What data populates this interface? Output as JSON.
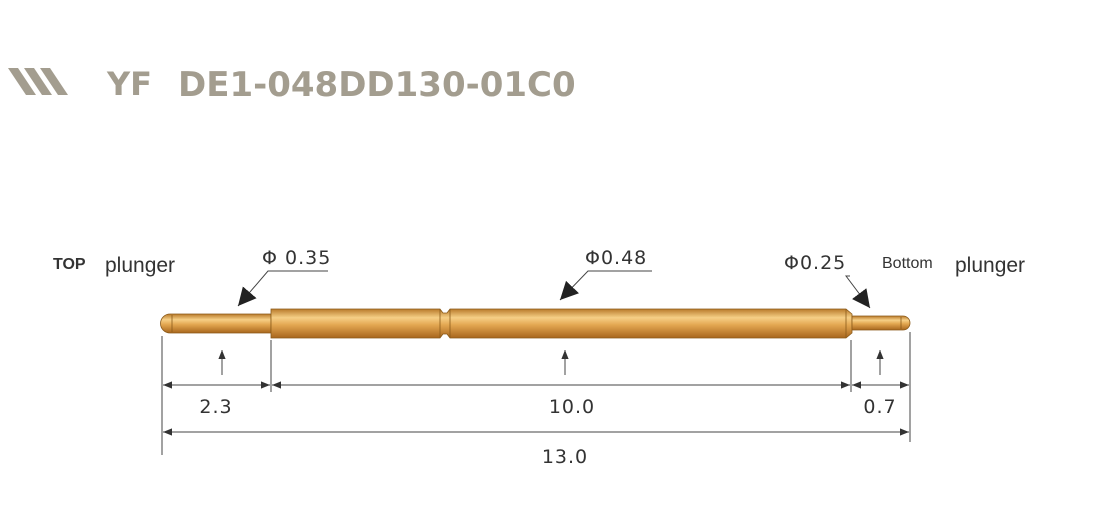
{
  "header": {
    "brand": "YF",
    "part_number": "DE1-048DD130-01C0"
  },
  "labels": {
    "top_prefix": "TOP",
    "top_suffix": "plunger",
    "bottom_prefix": "Bottom",
    "bottom_suffix": "plunger"
  },
  "diameters": {
    "top_plunger": "Φ 0.35",
    "barrel": "Φ0.48",
    "bottom_plunger": "Φ0.25"
  },
  "dimensions": {
    "top_length": "2.3",
    "barrel_length": "10.0",
    "bottom_length": "0.7",
    "total_length": "13.0"
  },
  "colors": {
    "brand": "#a39d8f",
    "gold": "#d9a24a"
  }
}
